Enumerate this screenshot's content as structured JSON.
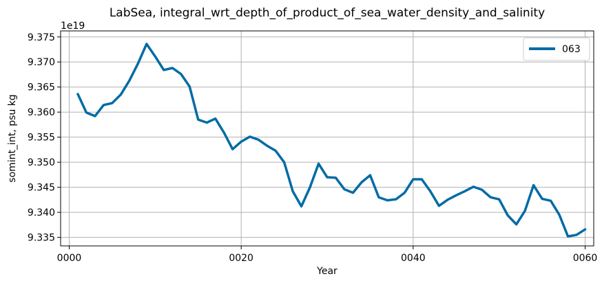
{
  "chart_data": {
    "type": "line",
    "title": "LabSea, integral_wrt_depth_of_product_of_sea_water_density_and_salinity",
    "xlabel": "Year",
    "ylabel": "somint_int, psu kg",
    "offset_text": "1e19",
    "xlim": [
      -1,
      61
    ],
    "ylim": [
      9.3333,
      9.3762
    ],
    "xticks": [
      0,
      20,
      40,
      60
    ],
    "xtick_labels": [
      "0000",
      "0020",
      "0040",
      "0060"
    ],
    "yticks": [
      9.335,
      9.34,
      9.345,
      9.35,
      9.355,
      9.36,
      9.365,
      9.37,
      9.375
    ],
    "ytick_labels": [
      "9.335",
      "9.340",
      "9.345",
      "9.350",
      "9.355",
      "9.360",
      "9.365",
      "9.370",
      "9.375"
    ],
    "grid": true,
    "legend_position": "top-right",
    "series": [
      {
        "name": "063",
        "color": "#006ba4",
        "x": [
          1,
          2,
          3,
          4,
          5,
          6,
          7,
          8,
          9,
          10,
          11,
          12,
          13,
          14,
          15,
          16,
          17,
          18,
          19,
          20,
          21,
          22,
          23,
          24,
          25,
          26,
          27,
          28,
          29,
          30,
          31,
          32,
          33,
          34,
          35,
          36,
          37,
          38,
          39,
          40,
          41,
          42,
          43,
          44,
          45,
          46,
          47,
          48,
          49,
          50,
          51,
          52,
          53,
          54,
          55,
          56,
          57,
          58,
          59,
          60
        ],
        "values": [
          9.3636,
          9.3599,
          9.3592,
          9.3614,
          9.3618,
          9.3635,
          9.3663,
          9.3697,
          9.3736,
          9.3711,
          9.3684,
          9.3688,
          9.3676,
          9.3651,
          9.3585,
          9.3579,
          9.3587,
          9.3559,
          9.3526,
          9.3541,
          9.3551,
          9.3545,
          9.3533,
          9.3523,
          9.35,
          9.3442,
          9.3412,
          9.345,
          9.3497,
          9.347,
          9.3469,
          9.3446,
          9.3439,
          9.346,
          9.3474,
          9.343,
          9.3424,
          9.3426,
          9.3439,
          9.3466,
          9.3466,
          9.3442,
          9.3413,
          9.3425,
          9.3434,
          9.3442,
          9.3451,
          9.3445,
          9.343,
          9.3426,
          9.3394,
          9.3376,
          9.3403,
          9.3454,
          9.3427,
          9.3423,
          9.3395,
          9.3352,
          9.3355,
          9.3366
        ]
      }
    ]
  }
}
